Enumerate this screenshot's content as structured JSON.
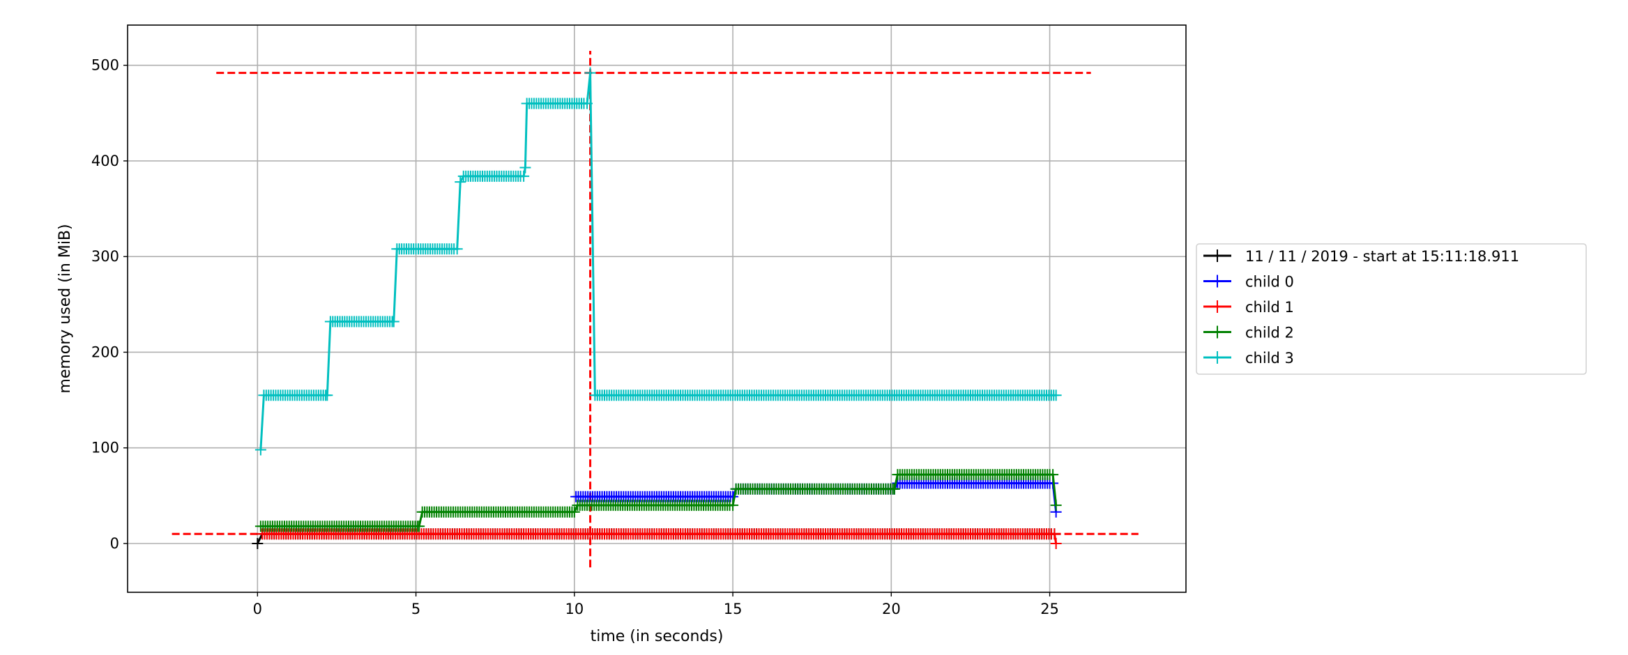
{
  "chart_data": {
    "type": "line",
    "xlabel": "time (in seconds)",
    "ylabel": "memory used (in MiB)",
    "xlim": [
      -4.1,
      29.3
    ],
    "ylim": [
      -51,
      542
    ],
    "xticks": [
      0,
      5,
      10,
      15,
      20,
      25
    ],
    "yticks": [
      0,
      100,
      200,
      300,
      400,
      500
    ],
    "grid": true,
    "legend_position": "right, outside plot",
    "marker": "+",
    "sample_interval_s": 0.075,
    "series": [
      {
        "name": "11 / 11 / 2019 - start at 15:11:18.911",
        "color": "#000000",
        "points": [
          [
            0,
            0
          ],
          [
            0.15,
            10
          ],
          [
            25.15,
            10
          ]
        ]
      },
      {
        "name": "child 0",
        "color": "#0000ff",
        "points": [
          [
            10.05,
            49
          ],
          [
            15.0,
            49
          ],
          [
            15.1,
            57
          ],
          [
            20.1,
            57
          ],
          [
            20.2,
            63
          ],
          [
            25.1,
            63
          ],
          [
            25.2,
            33
          ]
        ]
      },
      {
        "name": "child 1",
        "color": "#ff0000",
        "points": [
          [
            0.15,
            10
          ],
          [
            25.15,
            10
          ],
          [
            25.2,
            0
          ]
        ]
      },
      {
        "name": "child 2",
        "color": "#008000",
        "points": [
          [
            0.1,
            18
          ],
          [
            5.1,
            18
          ],
          [
            5.2,
            33
          ],
          [
            10.0,
            33
          ],
          [
            10.1,
            40
          ],
          [
            15.0,
            40
          ],
          [
            15.1,
            57
          ],
          [
            20.1,
            57
          ],
          [
            20.2,
            72
          ],
          [
            25.1,
            72
          ],
          [
            25.2,
            40
          ]
        ]
      },
      {
        "name": "child 3",
        "color": "#00bfbf",
        "points": [
          [
            0.1,
            98
          ],
          [
            0.2,
            155
          ],
          [
            2.2,
            155
          ],
          [
            2.3,
            232
          ],
          [
            4.3,
            232
          ],
          [
            4.4,
            308
          ],
          [
            6.3,
            308
          ],
          [
            6.4,
            378
          ],
          [
            6.5,
            384
          ],
          [
            8.4,
            384
          ],
          [
            8.45,
            393
          ],
          [
            8.5,
            460
          ],
          [
            10.4,
            460
          ],
          [
            10.5,
            492
          ],
          [
            10.65,
            155
          ],
          [
            25.2,
            155
          ]
        ]
      }
    ],
    "reference_lines": [
      {
        "orientation": "horizontal",
        "y": 492,
        "from": -1.3,
        "to": 26.3,
        "color": "#ff0000",
        "style": "dashed"
      },
      {
        "orientation": "horizontal",
        "y": 10,
        "from": -2.7,
        "to": 27.8,
        "color": "#ff0000",
        "style": "dashed"
      },
      {
        "orientation": "vertical",
        "x": 10.5,
        "from": -25,
        "to": 515,
        "color": "#ff0000",
        "style": "dashed"
      }
    ]
  }
}
